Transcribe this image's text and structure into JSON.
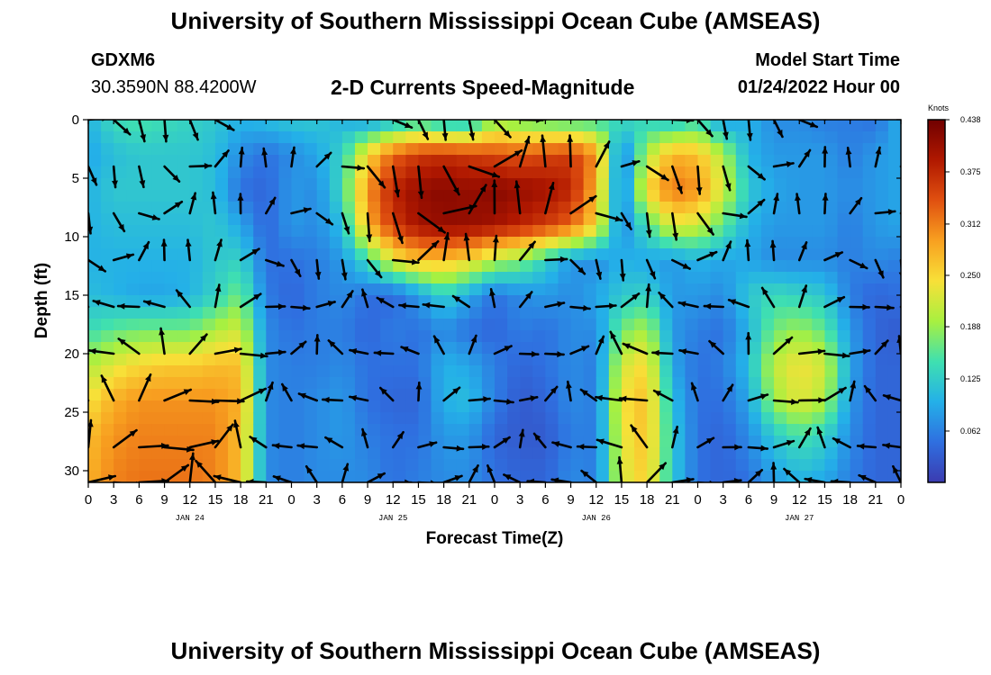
{
  "header": {
    "title": "University of Southern Mississippi Ocean Cube (AMSEAS)",
    "station": "GDXM6",
    "coordinates": "30.3590N  88.4200W",
    "chart_title": "2-D Currents Speed-Magnitude",
    "start_label": "Model Start Time",
    "start_value": "01/24/2022 Hour 00"
  },
  "footer": {
    "title": "University of Southern Mississippi Ocean Cube (AMSEAS)"
  },
  "chart_data": {
    "type": "heatmap",
    "title": "2-D Currents Speed-Magnitude",
    "xlabel": "Forecast Time(Z)",
    "ylabel": "Depth (ft)",
    "x_range_hours": [
      0,
      96
    ],
    "y_range_ft": [
      0,
      31
    ],
    "y_inverted": true,
    "x_tick_labels": [
      "0",
      "3",
      "6",
      "9",
      "12",
      "15",
      "18",
      "21",
      "0",
      "3",
      "6",
      "9",
      "12",
      "15",
      "18",
      "21",
      "0",
      "3",
      "6",
      "9",
      "12",
      "15",
      "18",
      "21",
      "0",
      "3",
      "6",
      "9",
      "12",
      "15",
      "18",
      "21",
      "0"
    ],
    "y_ticks": [
      0,
      5,
      10,
      15,
      20,
      25,
      30
    ],
    "day_labels": [
      {
        "label": "JAN 24",
        "hour": 12
      },
      {
        "label": "JAN 25",
        "hour": 36
      },
      {
        "label": "JAN 26",
        "hour": 60
      },
      {
        "label": "JAN 27",
        "hour": 84
      }
    ],
    "colorbar": {
      "unit": "Knots",
      "range": [
        0.0,
        0.438
      ],
      "ticks": [
        "0.438",
        "0.375",
        "0.312",
        "0.250",
        "0.188",
        "0.125",
        "0.062"
      ],
      "tick_values": [
        0.438,
        0.375,
        0.312,
        0.25,
        0.188,
        0.125,
        0.062
      ],
      "colormap": [
        "#3b3bb0",
        "#2f6fe0",
        "#24b0e8",
        "#3fe0b0",
        "#a8f040",
        "#f8e038",
        "#f8a020",
        "#e05010",
        "#b01800",
        "#700000"
      ]
    },
    "depth_levels_ft": [
      0,
      4,
      8,
      12,
      16,
      20,
      24,
      28,
      31
    ],
    "time_step_hours": 3,
    "speed_knots": [
      [
        0.1,
        0.14,
        0.15,
        0.14,
        0.13,
        0.12,
        0.1,
        0.11,
        0.12,
        0.12,
        0.1,
        0.08,
        0.1,
        0.13,
        0.1,
        0.1,
        0.18,
        0.16,
        0.15,
        0.14,
        0.14,
        0.14,
        0.13,
        0.11,
        0.14,
        0.08,
        0.1,
        0.07,
        0.07,
        0.06,
        0.06,
        0.05,
        0.1
      ],
      [
        0.09,
        0.11,
        0.12,
        0.12,
        0.12,
        0.11,
        0.07,
        0.05,
        0.07,
        0.09,
        0.13,
        0.25,
        0.33,
        0.36,
        0.37,
        0.36,
        0.35,
        0.34,
        0.35,
        0.36,
        0.3,
        0.05,
        0.2,
        0.28,
        0.27,
        0.2,
        0.1,
        0.08,
        0.08,
        0.08,
        0.06,
        0.08,
        0.09
      ],
      [
        0.1,
        0.12,
        0.12,
        0.12,
        0.12,
        0.11,
        0.05,
        0.04,
        0.08,
        0.07,
        0.14,
        0.3,
        0.38,
        0.41,
        0.42,
        0.41,
        0.42,
        0.41,
        0.4,
        0.38,
        0.28,
        0.05,
        0.25,
        0.32,
        0.3,
        0.22,
        0.12,
        0.09,
        0.08,
        0.08,
        0.07,
        0.08,
        0.09
      ],
      [
        0.1,
        0.11,
        0.11,
        0.11,
        0.11,
        0.12,
        0.09,
        0.04,
        0.08,
        0.07,
        0.11,
        0.28,
        0.36,
        0.4,
        0.41,
        0.41,
        0.4,
        0.38,
        0.36,
        0.33,
        0.25,
        0.06,
        0.15,
        0.23,
        0.22,
        0.16,
        0.1,
        0.08,
        0.08,
        0.08,
        0.06,
        0.08,
        0.09
      ],
      [
        0.1,
        0.1,
        0.1,
        0.1,
        0.1,
        0.12,
        0.13,
        0.05,
        0.05,
        0.06,
        0.08,
        0.14,
        0.23,
        0.27,
        0.27,
        0.25,
        0.2,
        0.18,
        0.13,
        0.08,
        0.07,
        0.1,
        0.09,
        0.08,
        0.1,
        0.09,
        0.09,
        0.07,
        0.07,
        0.07,
        0.06,
        0.07,
        0.06
      ],
      [
        0.11,
        0.1,
        0.09,
        0.09,
        0.1,
        0.13,
        0.17,
        0.06,
        0.04,
        0.06,
        0.07,
        0.05,
        0.04,
        0.08,
        0.13,
        0.09,
        0.05,
        0.07,
        0.08,
        0.07,
        0.09,
        0.12,
        0.13,
        0.08,
        0.08,
        0.07,
        0.12,
        0.14,
        0.13,
        0.12,
        0.06,
        0.04,
        0.05
      ],
      [
        0.14,
        0.16,
        0.17,
        0.17,
        0.17,
        0.2,
        0.22,
        0.07,
        0.05,
        0.06,
        0.06,
        0.04,
        0.06,
        0.05,
        0.07,
        0.05,
        0.04,
        0.06,
        0.05,
        0.07,
        0.07,
        0.17,
        0.2,
        0.08,
        0.06,
        0.05,
        0.1,
        0.17,
        0.19,
        0.16,
        0.08,
        0.04,
        0.03
      ],
      [
        0.2,
        0.23,
        0.25,
        0.26,
        0.26,
        0.27,
        0.27,
        0.07,
        0.06,
        0.06,
        0.07,
        0.05,
        0.05,
        0.05,
        0.1,
        0.09,
        0.06,
        0.04,
        0.05,
        0.07,
        0.06,
        0.22,
        0.25,
        0.09,
        0.05,
        0.06,
        0.11,
        0.21,
        0.24,
        0.22,
        0.09,
        0.04,
        0.04
      ],
      [
        0.24,
        0.28,
        0.3,
        0.3,
        0.3,
        0.3,
        0.28,
        0.07,
        0.06,
        0.07,
        0.08,
        0.05,
        0.04,
        0.04,
        0.1,
        0.11,
        0.06,
        0.03,
        0.04,
        0.07,
        0.06,
        0.24,
        0.27,
        0.11,
        0.05,
        0.05,
        0.09,
        0.19,
        0.23,
        0.2,
        0.08,
        0.04,
        0.04
      ],
      [
        0.27,
        0.3,
        0.31,
        0.31,
        0.31,
        0.31,
        0.27,
        0.07,
        0.06,
        0.07,
        0.08,
        0.06,
        0.05,
        0.05,
        0.08,
        0.08,
        0.04,
        0.03,
        0.03,
        0.06,
        0.06,
        0.23,
        0.27,
        0.12,
        0.05,
        0.04,
        0.07,
        0.12,
        0.15,
        0.13,
        0.07,
        0.04,
        0.04
      ],
      [
        0.28,
        0.31,
        0.32,
        0.32,
        0.32,
        0.31,
        0.27,
        0.07,
        0.06,
        0.07,
        0.07,
        0.07,
        0.05,
        0.06,
        0.07,
        0.07,
        0.05,
        0.04,
        0.04,
        0.07,
        0.06,
        0.22,
        0.26,
        0.12,
        0.05,
        0.04,
        0.05,
        0.08,
        0.1,
        0.09,
        0.06,
        0.04,
        0.04
      ]
    ],
    "speed_depths_ft": [
      0,
      3,
      6,
      9,
      12,
      15,
      18,
      21,
      24,
      27,
      31
    ]
  }
}
